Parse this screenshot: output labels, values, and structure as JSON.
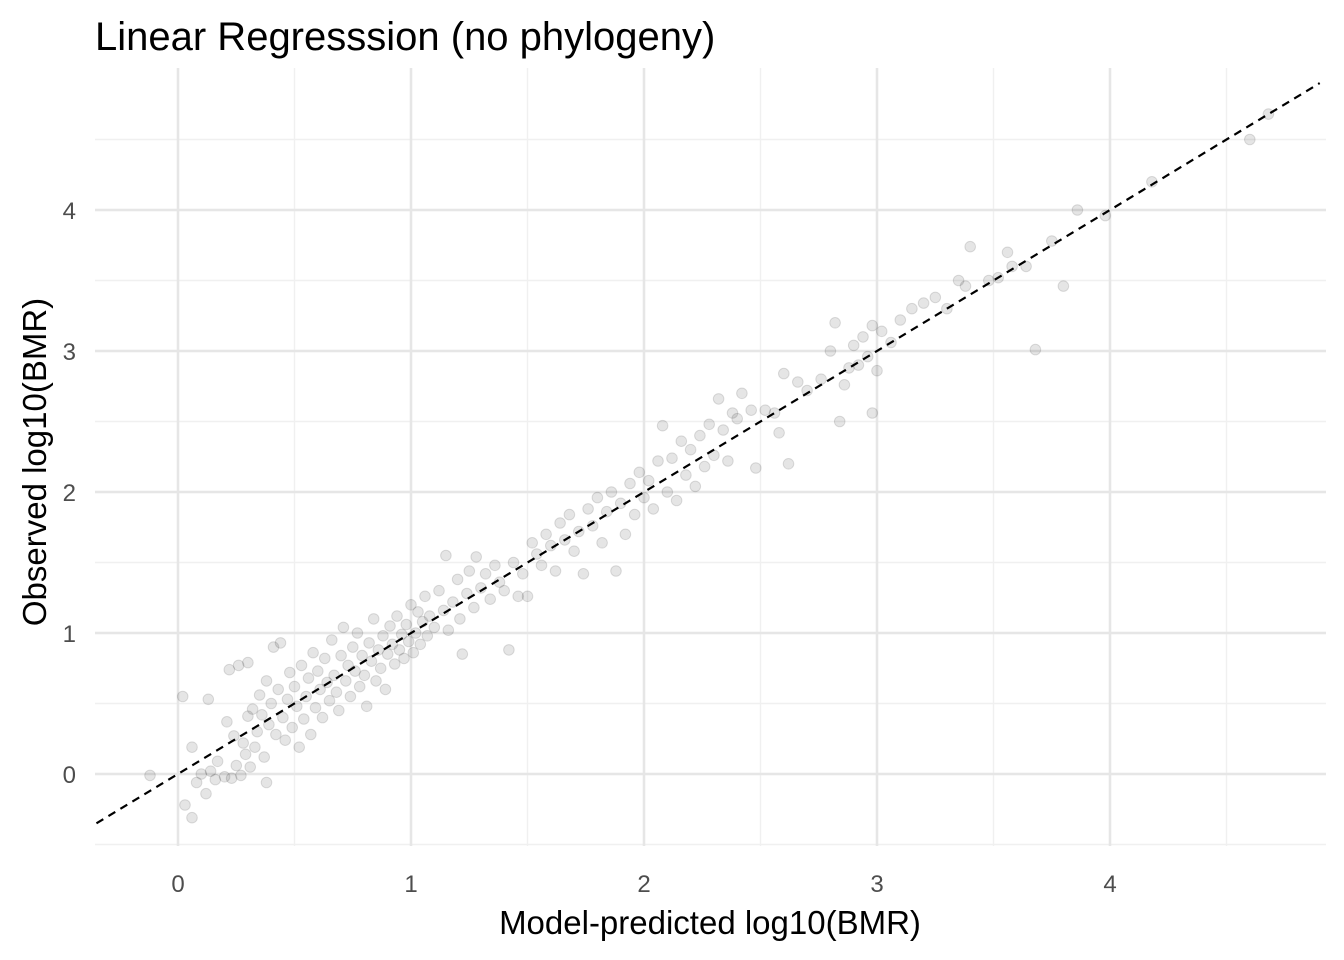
{
  "chart_data": {
    "type": "scatter",
    "title": "Linear Regresssion (no phylogeny)",
    "xlabel": "Model-predicted log10(BMR)",
    "ylabel": "Observed log10(BMR)",
    "xlim": [
      -0.35,
      4.9
    ],
    "ylim": [
      -0.52,
      4.95
    ],
    "x_ticks": [
      0,
      1,
      2,
      3,
      4
    ],
    "y_ticks": [
      0,
      1,
      2,
      3,
      4
    ],
    "x_tick_labels": [
      "0",
      "1",
      "2",
      "3",
      "4"
    ],
    "y_tick_labels": [
      "0",
      "1",
      "2",
      "3",
      "4"
    ],
    "grid": true,
    "reference_line": {
      "style": "dashed",
      "slope": 1,
      "intercept": 0
    },
    "point_style": {
      "color": "#000000",
      "alpha": 0.12
    },
    "points": [
      [
        -0.12,
        -0.01
      ],
      [
        0.02,
        0.55
      ],
      [
        0.03,
        -0.22
      ],
      [
        0.06,
        -0.31
      ],
      [
        0.06,
        0.19
      ],
      [
        0.08,
        -0.06
      ],
      [
        0.1,
        0.0
      ],
      [
        0.12,
        -0.14
      ],
      [
        0.13,
        0.53
      ],
      [
        0.14,
        0.02
      ],
      [
        0.16,
        -0.04
      ],
      [
        0.17,
        0.09
      ],
      [
        0.2,
        -0.02
      ],
      [
        0.21,
        0.37
      ],
      [
        0.22,
        0.74
      ],
      [
        0.23,
        -0.03
      ],
      [
        0.24,
        0.27
      ],
      [
        0.25,
        0.06
      ],
      [
        0.26,
        0.77
      ],
      [
        0.27,
        -0.01
      ],
      [
        0.28,
        0.22
      ],
      [
        0.29,
        0.14
      ],
      [
        0.3,
        0.41
      ],
      [
        0.3,
        0.79
      ],
      [
        0.31,
        0.05
      ],
      [
        0.32,
        0.46
      ],
      [
        0.33,
        0.19
      ],
      [
        0.34,
        0.3
      ],
      [
        0.35,
        0.56
      ],
      [
        0.36,
        0.42
      ],
      [
        0.37,
        0.12
      ],
      [
        0.38,
        -0.06
      ],
      [
        0.38,
        0.66
      ],
      [
        0.39,
        0.35
      ],
      [
        0.4,
        0.5
      ],
      [
        0.41,
        0.9
      ],
      [
        0.42,
        0.28
      ],
      [
        0.43,
        0.6
      ],
      [
        0.44,
        0.93
      ],
      [
        0.45,
        0.4
      ],
      [
        0.46,
        0.24
      ],
      [
        0.47,
        0.53
      ],
      [
        0.48,
        0.72
      ],
      [
        0.49,
        0.33
      ],
      [
        0.5,
        0.62
      ],
      [
        0.51,
        0.48
      ],
      [
        0.52,
        0.19
      ],
      [
        0.53,
        0.77
      ],
      [
        0.54,
        0.39
      ],
      [
        0.55,
        0.55
      ],
      [
        0.56,
        0.68
      ],
      [
        0.57,
        0.28
      ],
      [
        0.58,
        0.86
      ],
      [
        0.59,
        0.47
      ],
      [
        0.6,
        0.73
      ],
      [
        0.61,
        0.6
      ],
      [
        0.62,
        0.4
      ],
      [
        0.63,
        0.82
      ],
      [
        0.64,
        0.65
      ],
      [
        0.65,
        0.52
      ],
      [
        0.66,
        0.95
      ],
      [
        0.67,
        0.7
      ],
      [
        0.68,
        0.58
      ],
      [
        0.69,
        0.45
      ],
      [
        0.7,
        0.84
      ],
      [
        0.71,
        1.04
      ],
      [
        0.72,
        0.66
      ],
      [
        0.73,
        0.77
      ],
      [
        0.74,
        0.55
      ],
      [
        0.75,
        0.9
      ],
      [
        0.76,
        0.73
      ],
      [
        0.77,
        1.0
      ],
      [
        0.78,
        0.62
      ],
      [
        0.79,
        0.84
      ],
      [
        0.8,
        0.7
      ],
      [
        0.81,
        0.48
      ],
      [
        0.82,
        0.93
      ],
      [
        0.83,
        0.8
      ],
      [
        0.84,
        1.1
      ],
      [
        0.85,
        0.66
      ],
      [
        0.86,
        0.88
      ],
      [
        0.87,
        0.75
      ],
      [
        0.88,
        0.98
      ],
      [
        0.89,
        0.6
      ],
      [
        0.9,
        0.85
      ],
      [
        0.91,
        1.05
      ],
      [
        0.92,
        0.92
      ],
      [
        0.93,
        0.78
      ],
      [
        0.94,
        1.12
      ],
      [
        0.95,
        0.88
      ],
      [
        0.96,
        0.99
      ],
      [
        0.97,
        0.82
      ],
      [
        0.98,
        1.06
      ],
      [
        0.99,
        0.94
      ],
      [
        1.0,
        1.2
      ],
      [
        1.01,
        0.86
      ],
      [
        1.02,
        1.0
      ],
      [
        1.03,
        1.15
      ],
      [
        1.04,
        0.92
      ],
      [
        1.05,
        1.08
      ],
      [
        1.06,
        1.26
      ],
      [
        1.07,
        0.98
      ],
      [
        1.08,
        1.12
      ],
      [
        1.1,
        1.04
      ],
      [
        1.12,
        1.3
      ],
      [
        1.14,
        1.16
      ],
      [
        1.15,
        1.55
      ],
      [
        1.16,
        1.02
      ],
      [
        1.18,
        1.22
      ],
      [
        1.2,
        1.38
      ],
      [
        1.21,
        1.1
      ],
      [
        1.22,
        0.85
      ],
      [
        1.24,
        1.28
      ],
      [
        1.25,
        1.44
      ],
      [
        1.27,
        1.18
      ],
      [
        1.28,
        1.54
      ],
      [
        1.3,
        1.32
      ],
      [
        1.32,
        1.42
      ],
      [
        1.34,
        1.24
      ],
      [
        1.36,
        1.48
      ],
      [
        1.38,
        1.36
      ],
      [
        1.4,
        1.3
      ],
      [
        1.42,
        0.88
      ],
      [
        1.44,
        1.5
      ],
      [
        1.46,
        1.26
      ],
      [
        1.48,
        1.42
      ],
      [
        1.5,
        1.26
      ],
      [
        1.52,
        1.64
      ],
      [
        1.54,
        1.56
      ],
      [
        1.56,
        1.48
      ],
      [
        1.58,
        1.7
      ],
      [
        1.6,
        1.62
      ],
      [
        1.62,
        1.44
      ],
      [
        1.64,
        1.78
      ],
      [
        1.66,
        1.66
      ],
      [
        1.68,
        1.84
      ],
      [
        1.7,
        1.58
      ],
      [
        1.72,
        1.72
      ],
      [
        1.74,
        1.42
      ],
      [
        1.76,
        1.88
      ],
      [
        1.78,
        1.76
      ],
      [
        1.8,
        1.96
      ],
      [
        1.82,
        1.64
      ],
      [
        1.84,
        1.86
      ],
      [
        1.86,
        2.0
      ],
      [
        1.88,
        1.44
      ],
      [
        1.9,
        1.92
      ],
      [
        1.92,
        1.7
      ],
      [
        1.94,
        2.06
      ],
      [
        1.96,
        1.84
      ],
      [
        1.98,
        2.14
      ],
      [
        2.0,
        1.96
      ],
      [
        2.02,
        2.08
      ],
      [
        2.04,
        1.88
      ],
      [
        2.06,
        2.22
      ],
      [
        2.08,
        2.47
      ],
      [
        2.1,
        2.0
      ],
      [
        2.12,
        2.24
      ],
      [
        2.14,
        1.94
      ],
      [
        2.16,
        2.36
      ],
      [
        2.18,
        2.12
      ],
      [
        2.2,
        2.3
      ],
      [
        2.22,
        2.04
      ],
      [
        2.24,
        2.4
      ],
      [
        2.26,
        2.18
      ],
      [
        2.28,
        2.48
      ],
      [
        2.3,
        2.26
      ],
      [
        2.32,
        2.66
      ],
      [
        2.34,
        2.44
      ],
      [
        2.36,
        2.22
      ],
      [
        2.38,
        2.56
      ],
      [
        2.4,
        2.52
      ],
      [
        2.42,
        2.7
      ],
      [
        2.46,
        2.58
      ],
      [
        2.48,
        2.17
      ],
      [
        2.52,
        2.58
      ],
      [
        2.56,
        2.56
      ],
      [
        2.58,
        2.42
      ],
      [
        2.6,
        2.84
      ],
      [
        2.62,
        2.2
      ],
      [
        2.66,
        2.78
      ],
      [
        2.7,
        2.72
      ],
      [
        2.76,
        2.8
      ],
      [
        2.8,
        3.0
      ],
      [
        2.82,
        3.2
      ],
      [
        2.84,
        2.5
      ],
      [
        2.86,
        2.76
      ],
      [
        2.88,
        2.88
      ],
      [
        2.9,
        3.04
      ],
      [
        2.92,
        2.9
      ],
      [
        2.94,
        3.1
      ],
      [
        2.96,
        2.96
      ],
      [
        2.98,
        2.56
      ],
      [
        2.98,
        3.18
      ],
      [
        3.0,
        2.86
      ],
      [
        3.02,
        3.14
      ],
      [
        3.06,
        3.06
      ],
      [
        3.1,
        3.22
      ],
      [
        3.15,
        3.3
      ],
      [
        3.2,
        3.34
      ],
      [
        3.25,
        3.38
      ],
      [
        3.3,
        3.3
      ],
      [
        3.35,
        3.5
      ],
      [
        3.38,
        3.46
      ],
      [
        3.4,
        3.74
      ],
      [
        3.48,
        3.5
      ],
      [
        3.52,
        3.52
      ],
      [
        3.56,
        3.7
      ],
      [
        3.58,
        3.6
      ],
      [
        3.64,
        3.6
      ],
      [
        3.68,
        3.01
      ],
      [
        3.75,
        3.78
      ],
      [
        3.8,
        3.46
      ],
      [
        3.86,
        4.0
      ],
      [
        3.98,
        3.96
      ],
      [
        4.18,
        4.2
      ],
      [
        4.6,
        4.5
      ],
      [
        4.68,
        4.68
      ]
    ]
  }
}
